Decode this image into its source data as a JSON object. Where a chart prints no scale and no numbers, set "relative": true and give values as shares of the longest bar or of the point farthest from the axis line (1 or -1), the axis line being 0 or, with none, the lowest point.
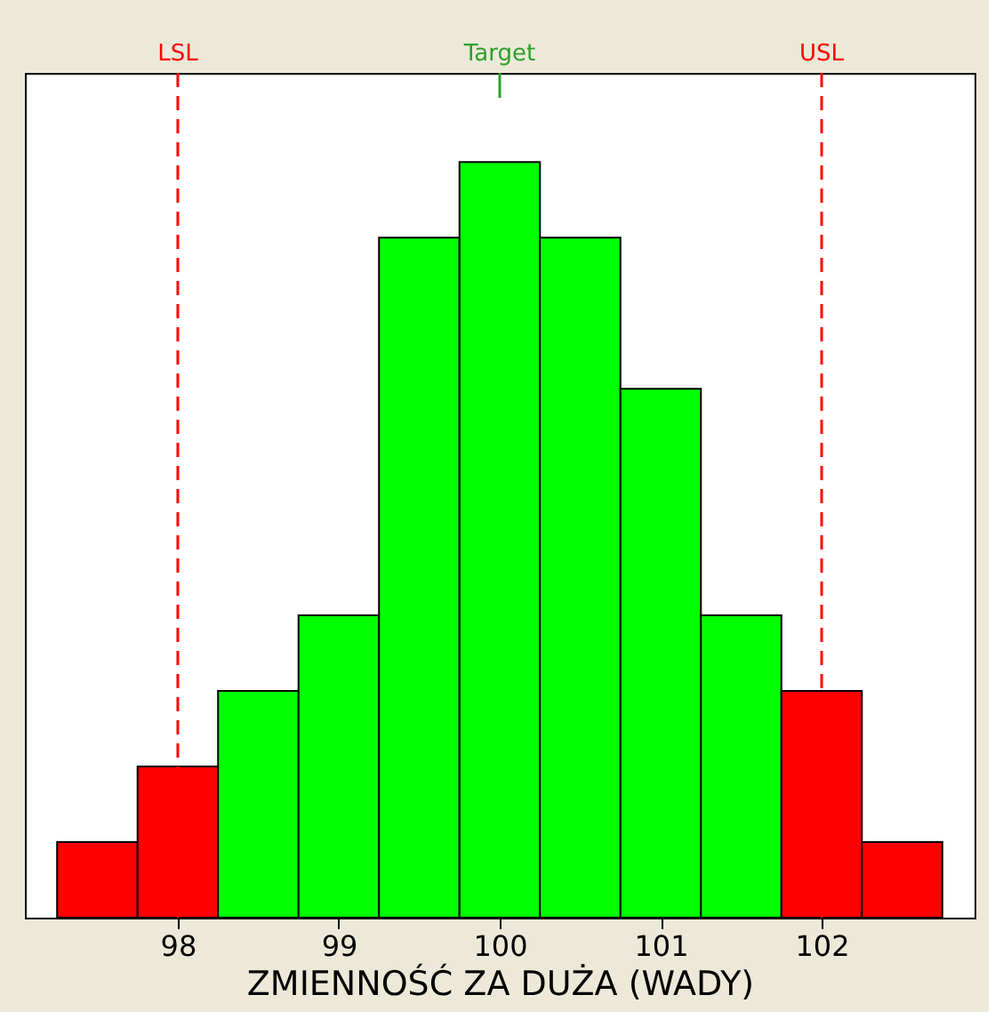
{
  "chart_data": {
    "type": "bar",
    "xlabel": "ZMIENNOŚĆ ZA DUŻA (WADY)",
    "x": [
      97.5,
      98,
      98.5,
      99,
      99.5,
      100,
      100.5,
      101,
      101.5,
      102,
      102.5
    ],
    "values": [
      0.1,
      0.2,
      0.3,
      0.4,
      0.9,
      1.0,
      0.9,
      0.7,
      0.4,
      0.3,
      0.1
    ],
    "colors": [
      "#ff0000",
      "#ff0000",
      "#00ff00",
      "#00ff00",
      "#00ff00",
      "#00ff00",
      "#00ff00",
      "#00ff00",
      "#00ff00",
      "#ff0000",
      "#ff0000"
    ],
    "relative": true,
    "xlim": [
      97.05,
      102.95
    ],
    "xticks": [
      98,
      99,
      100,
      101,
      102
    ],
    "ref_lines": [
      {
        "axis": "x",
        "value": 98,
        "label": "LSL",
        "color": "#ff0000",
        "line_style": "dashed"
      },
      {
        "axis": "x",
        "value": 100,
        "label": "Target",
        "color": "#2ca02c",
        "line_style": "solid"
      },
      {
        "axis": "x",
        "value": 102,
        "label": "USL",
        "color": "#ff0000",
        "line_style": "dashed"
      }
    ],
    "grid": false
  }
}
